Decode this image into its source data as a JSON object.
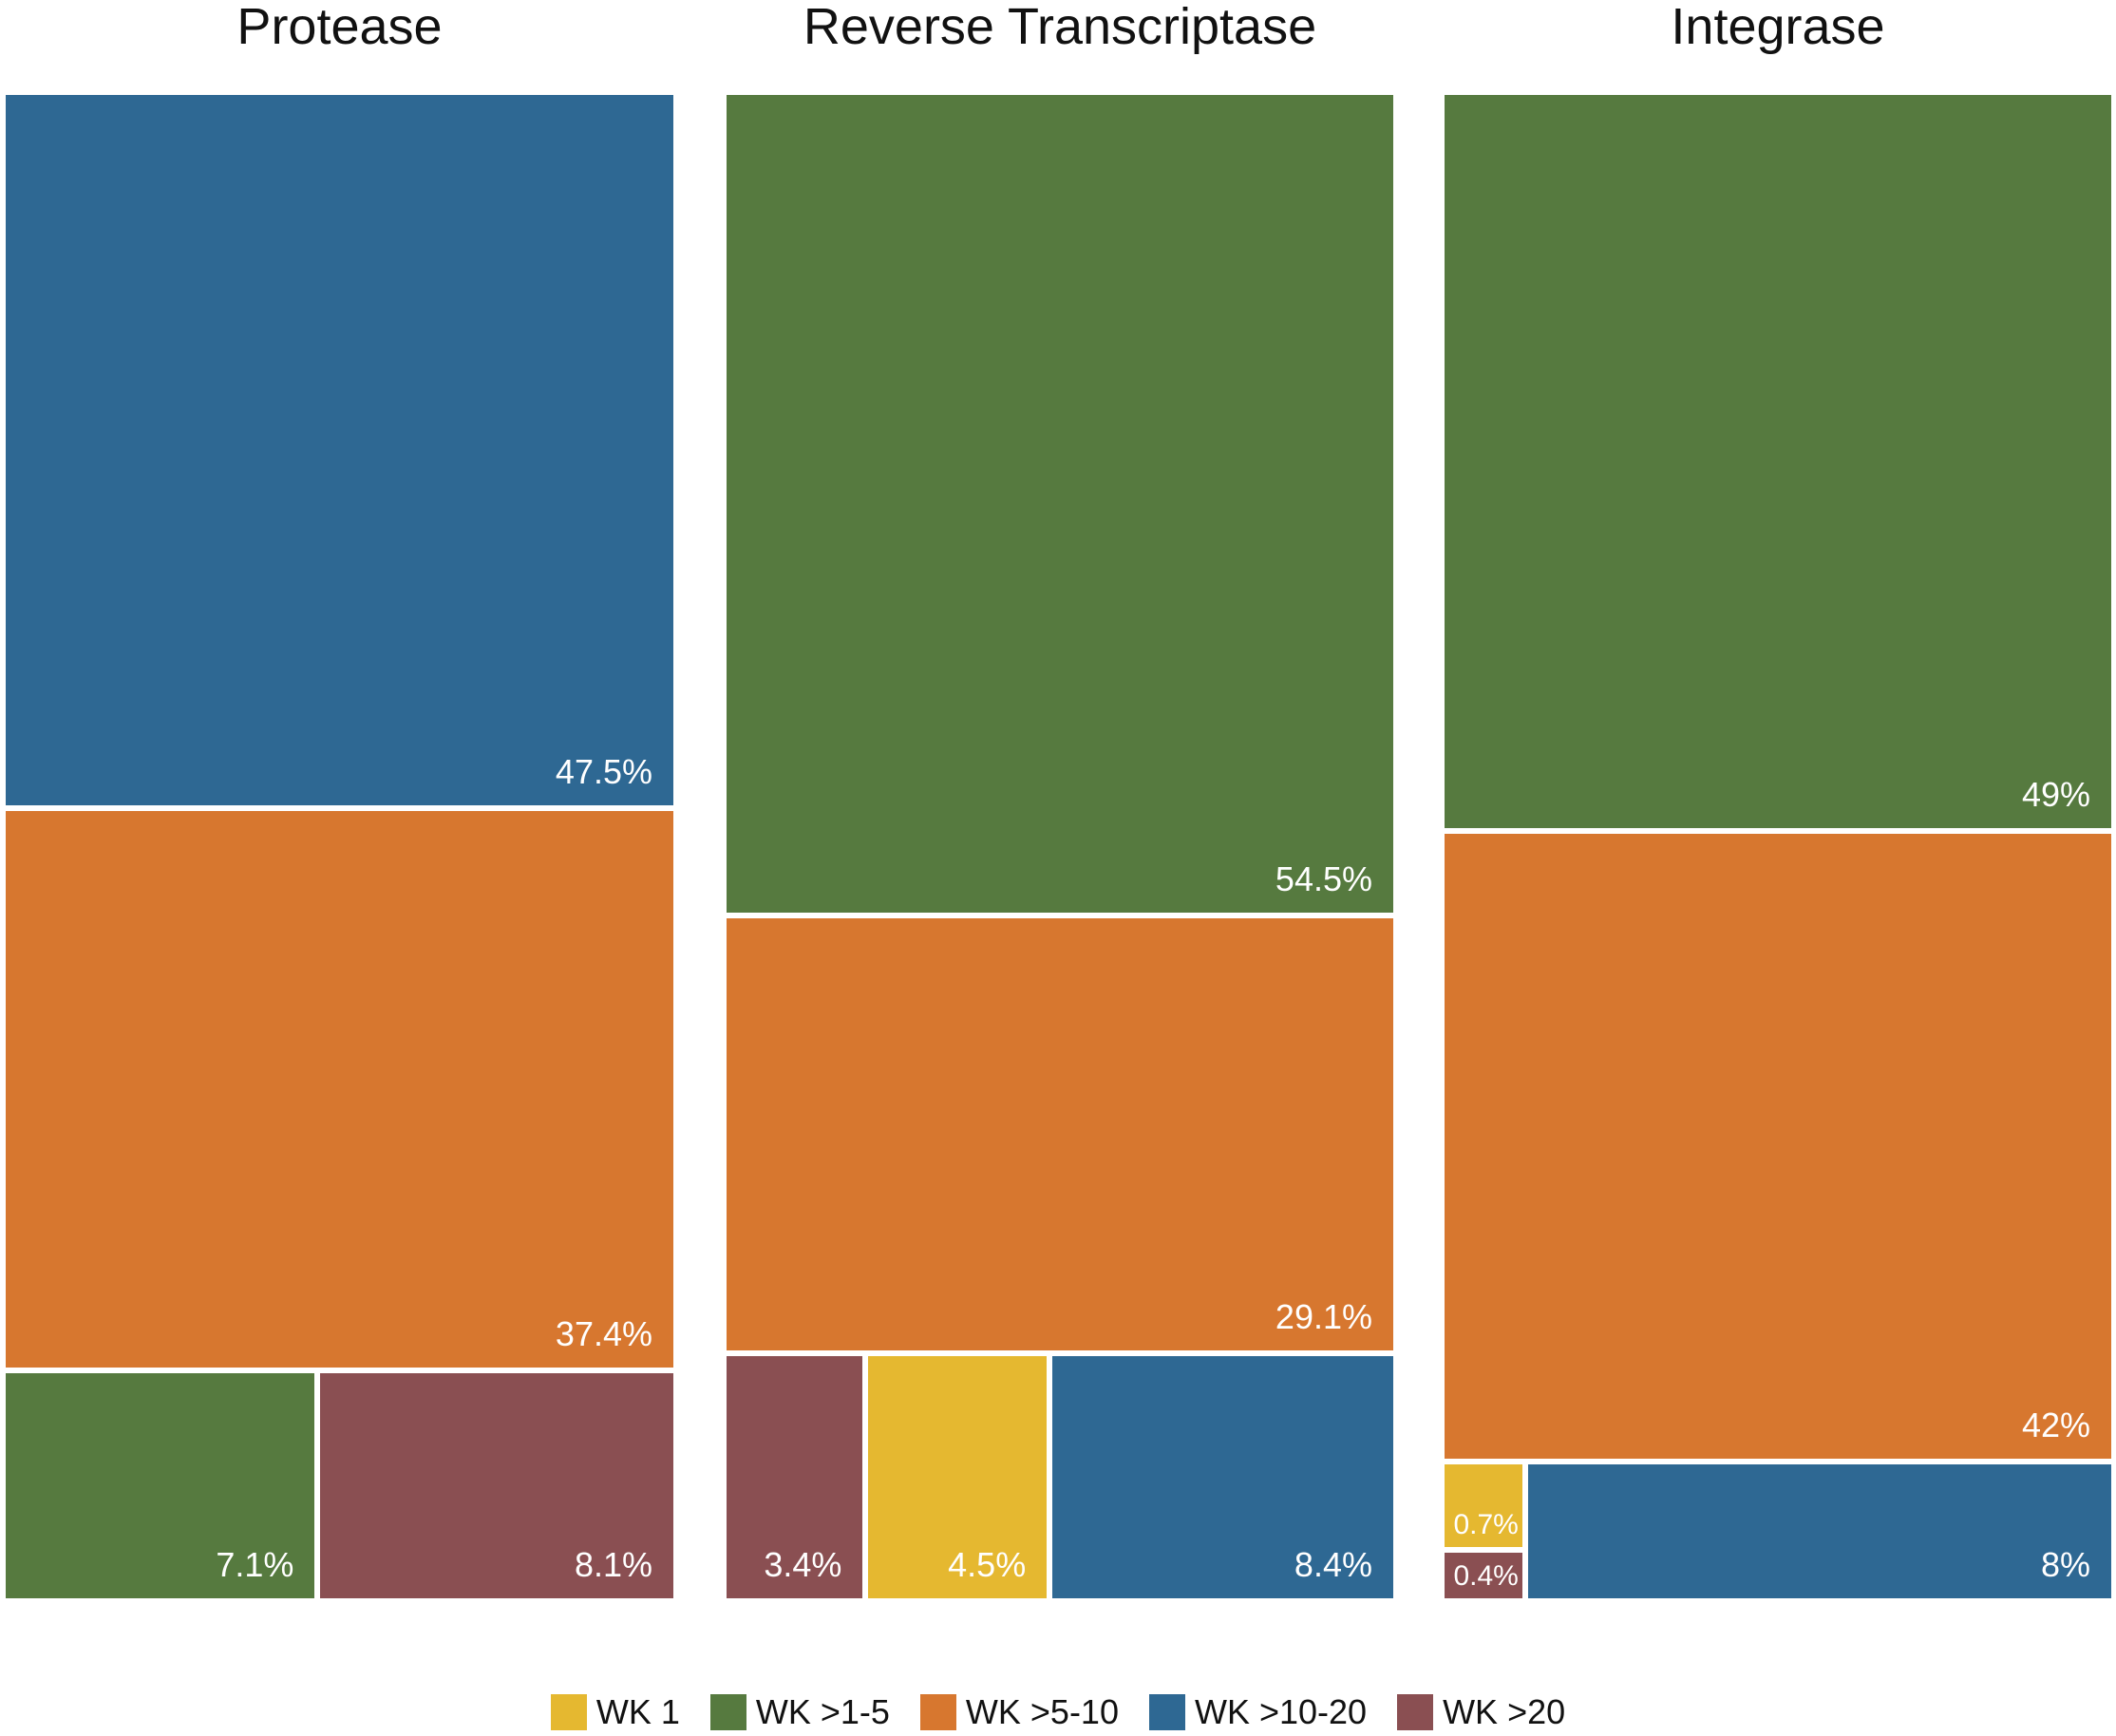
{
  "chart_data": {
    "type": "treemap",
    "unit": "%",
    "panels": [
      {
        "title": "Protease",
        "tiles": [
          {
            "category": "WK >10-20",
            "value": 47.5,
            "label": "47.5%"
          },
          {
            "category": "WK >5-10",
            "value": 37.4,
            "label": "37.4%"
          },
          {
            "category": "WK >1-5",
            "value": 7.1,
            "label": "7.1%"
          },
          {
            "category": "WK >20",
            "value": 8.1,
            "label": "8.1%"
          }
        ]
      },
      {
        "title": "Reverse Transcriptase",
        "tiles": [
          {
            "category": "WK >1-5",
            "value": 54.5,
            "label": "54.5%"
          },
          {
            "category": "WK >5-10",
            "value": 29.1,
            "label": "29.1%"
          },
          {
            "category": "WK >20",
            "value": 3.4,
            "label": "3.4%"
          },
          {
            "category": "WK 1",
            "value": 4.5,
            "label": "4.5%"
          },
          {
            "category": "WK >10-20",
            "value": 8.4,
            "label": "8.4%"
          }
        ]
      },
      {
        "title": "Integrase",
        "tiles": [
          {
            "category": "WK >1-5",
            "value": 49,
            "label": "49%"
          },
          {
            "category": "WK >5-10",
            "value": 42,
            "label": "42%"
          },
          {
            "category": "WK 1",
            "value": 0.7,
            "label": "0.7%"
          },
          {
            "category": "WK >20",
            "value": 0.4,
            "label": "0.4%"
          },
          {
            "category": "WK >10-20",
            "value": 8,
            "label": "8%"
          }
        ]
      }
    ],
    "legend": [
      {
        "label": "WK 1",
        "color": "#E5B830"
      },
      {
        "label": "WK >1-5",
        "color": "#567A3F"
      },
      {
        "label": "WK >5-10",
        "color": "#D7772F"
      },
      {
        "label": "WK >10-20",
        "color": "#2E6893"
      },
      {
        "label": "WK >20",
        "color": "#8A4F52"
      }
    ],
    "legend_position": "bottom"
  }
}
